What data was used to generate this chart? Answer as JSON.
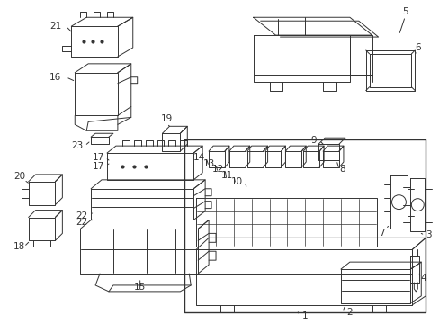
{
  "bg_color": "#ffffff",
  "fig_width": 4.89,
  "fig_height": 3.6,
  "dpi": 100,
  "line_color": "#333333",
  "lw": 0.7
}
